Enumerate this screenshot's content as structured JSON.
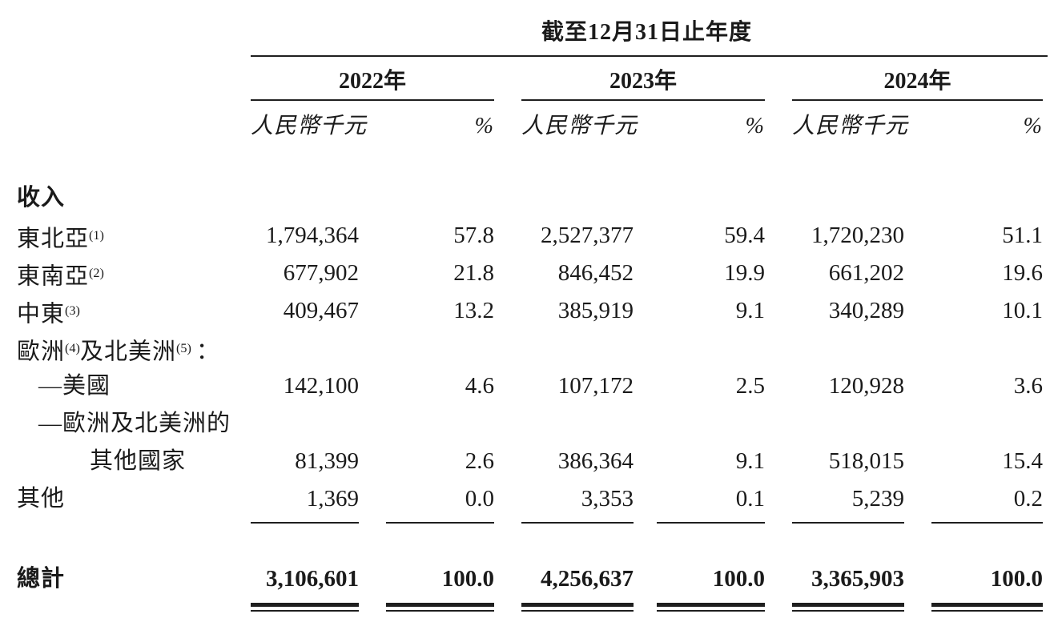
{
  "table": {
    "title": "截至12月31日止年度",
    "col_groups": [
      {
        "year": "2022年",
        "unit": "人民幣千元",
        "pct": "%"
      },
      {
        "year": "2023年",
        "unit": "人民幣千元",
        "pct": "%"
      },
      {
        "year": "2024年",
        "unit": "人民幣千元",
        "pct": "%"
      }
    ],
    "rows": [
      {
        "label_pre": "收入"
      },
      {
        "label_pre": "東北亞",
        "sup1": "(1)",
        "v": [
          "1,794,364",
          "57.8",
          "2,527,377",
          "59.4",
          "1,720,230",
          "51.1"
        ]
      },
      {
        "label_pre": "東南亞",
        "sup1": "(2)",
        "v": [
          "677,902",
          "21.8",
          "846,452",
          "19.9",
          "661,202",
          "19.6"
        ]
      },
      {
        "label_pre": "中東",
        "sup1": "(3)",
        "v": [
          "409,467",
          "13.2",
          "385,919",
          "9.1",
          "340,289",
          "10.1"
        ]
      },
      {
        "label_pre": "歐洲",
        "sup1": "(4)",
        "label_mid": "及北美洲",
        "sup2": "(5)",
        "label_post": "："
      },
      {
        "label_pre": "—美國",
        "v": [
          "142,100",
          "4.6",
          "107,172",
          "2.5",
          "120,928",
          "3.6"
        ]
      },
      {
        "label_pre": "—歐洲及北美洲的"
      },
      {
        "label_pre": "其他國家",
        "v": [
          "81,399",
          "2.6",
          "386,364",
          "9.1",
          "518,015",
          "15.4"
        ]
      },
      {
        "label_pre": "其他",
        "v": [
          "1,369",
          "0.0",
          "3,353",
          "0.1",
          "5,239",
          "0.2"
        ]
      }
    ],
    "total": {
      "label": "總計",
      "v": [
        "3,106,601",
        "100.0",
        "4,256,637",
        "100.0",
        "3,365,903",
        "100.0"
      ]
    }
  }
}
